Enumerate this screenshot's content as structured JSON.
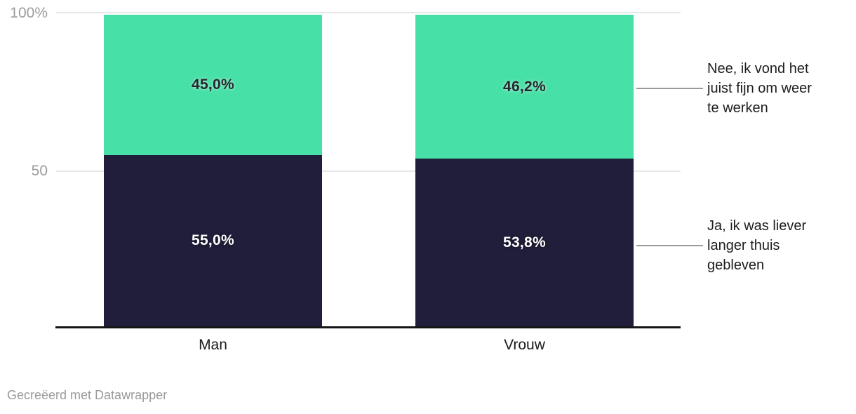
{
  "chart_data": {
    "type": "bar",
    "variant": "100%-stacked-column",
    "categories": [
      "Man",
      "Vrouw"
    ],
    "series": [
      {
        "name": "Ja, ik was liever langer thuis gebleven",
        "values": [
          55.0,
          53.8
        ],
        "value_labels": [
          "55,0%",
          "53,8%"
        ],
        "color": "#211e3b",
        "label_color": "#ffffff"
      },
      {
        "name": "Nee, ik vond het juist fijn om weer te werken",
        "values": [
          45.0,
          46.2
        ],
        "value_labels": [
          "45,0%",
          "46,2%"
        ],
        "color": "#47e0a6",
        "label_color": "#26262f"
      }
    ],
    "ylim": [
      0,
      100
    ],
    "y_ticks": [
      {
        "value": 100,
        "label": "100%"
      },
      {
        "value": 50,
        "label": "50"
      }
    ],
    "grid": true,
    "legend_position": "right"
  },
  "annotations": {
    "nee": {
      "lines": [
        "Nee, ik vond het",
        "juist fijn om weer",
        "te werken"
      ]
    },
    "ja": {
      "lines": [
        "Ja, ik was liever",
        "langer thuis",
        "gebleven"
      ]
    }
  },
  "footer": {
    "attribution": "Gecreëerd met Datawrapper"
  }
}
